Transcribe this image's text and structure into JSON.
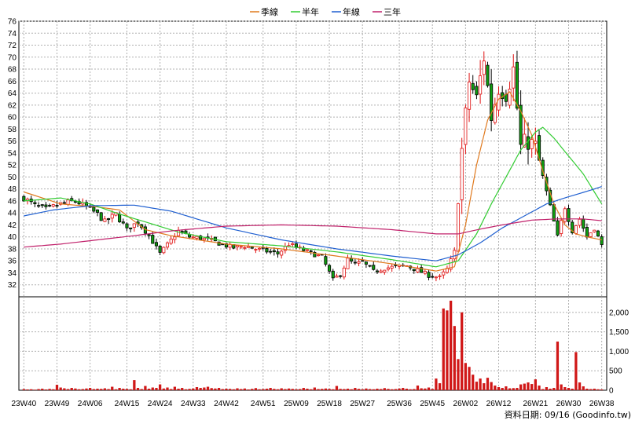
{
  "chart_data": {
    "type": "candlestick",
    "legend": [
      {
        "name": "季線",
        "color": "#e07a1f"
      },
      {
        "name": "半年",
        "color": "#33cc33"
      },
      {
        "name": "年線",
        "color": "#1f5fd0"
      },
      {
        "name": "三年",
        "color": "#c0206a"
      }
    ],
    "price_axis": {
      "min": 30,
      "max": 76,
      "ticks": [
        32,
        34,
        36,
        38,
        40,
        42,
        44,
        46,
        48,
        50,
        52,
        54,
        56,
        58,
        60,
        62,
        64,
        66,
        68,
        70,
        72,
        74,
        76
      ]
    },
    "volume_axis": {
      "min": 0,
      "max": 2400,
      "ticks": [
        "0",
        "500",
        "1,000",
        "1,500",
        "2,000"
      ],
      "tick_values": [
        0,
        500,
        1000,
        1500,
        2000
      ]
    },
    "x_labels": [
      "23W40",
      "23W49",
      "24W06",
      "24W15",
      "24W24",
      "24W33",
      "24W42",
      "24W51",
      "25W09",
      "25W18",
      "25W27",
      "25W36",
      "25W45",
      "26W02",
      "26W12",
      "26W21",
      "26W30",
      "26W38"
    ],
    "weeks": 158,
    "close_path": [
      [
        0,
        46.5
      ],
      [
        3,
        45.2
      ],
      [
        6,
        44.6
      ],
      [
        10,
        45.5
      ],
      [
        14,
        46.0
      ],
      [
        17,
        45.0
      ],
      [
        20,
        43.8
      ],
      [
        22,
        42.5
      ],
      [
        25,
        43.8
      ],
      [
        28,
        41.2
      ],
      [
        31,
        42.5
      ],
      [
        34,
        40.2
      ],
      [
        37,
        37.2
      ],
      [
        39,
        38.7
      ],
      [
        42,
        41.0
      ],
      [
        45,
        40.0
      ],
      [
        48,
        39.8
      ],
      [
        51,
        39.4
      ],
      [
        54,
        38.7
      ],
      [
        57,
        38.2
      ],
      [
        60,
        38.5
      ],
      [
        63,
        38.0
      ],
      [
        66,
        37.6
      ],
      [
        69,
        37.2
      ],
      [
        72,
        38.8
      ],
      [
        75,
        38.0
      ],
      [
        78,
        37.3
      ],
      [
        81,
        36.6
      ],
      [
        84,
        32.8
      ],
      [
        86,
        33.8
      ],
      [
        88,
        36.2
      ],
      [
        90,
        35.4
      ],
      [
        92,
        35.8
      ],
      [
        95,
        34.2
      ],
      [
        98,
        34.8
      ],
      [
        101,
        35.0
      ],
      [
        104,
        35.2
      ],
      [
        107,
        34.4
      ],
      [
        110,
        33.6
      ],
      [
        113,
        33.2
      ],
      [
        115,
        34.6
      ],
      [
        117,
        37.5
      ],
      [
        119,
        54.5
      ],
      [
        121,
        66.0
      ],
      [
        123,
        63.0
      ],
      [
        125,
        70.0
      ],
      [
        127,
        60.0
      ],
      [
        129,
        65.0
      ],
      [
        131,
        64.0
      ],
      [
        133,
        68.0
      ],
      [
        135,
        55.0
      ],
      [
        137,
        56.0
      ],
      [
        139,
        55.0
      ],
      [
        141,
        50.0
      ],
      [
        143,
        45.0
      ],
      [
        145,
        40.0
      ],
      [
        147,
        45.0
      ],
      [
        149,
        41.0
      ],
      [
        151,
        43.0
      ],
      [
        153,
        40.0
      ],
      [
        155,
        41.5
      ],
      [
        157,
        38.5
      ]
    ],
    "ma": {
      "季線": [
        [
          0,
          47.5
        ],
        [
          10,
          45.5
        ],
        [
          20,
          45.0
        ],
        [
          26,
          44.5
        ],
        [
          33,
          41.2
        ],
        [
          40,
          40.2
        ],
        [
          55,
          38.8
        ],
        [
          70,
          38.0
        ],
        [
          85,
          36.8
        ],
        [
          100,
          35.5
        ],
        [
          112,
          34.3
        ],
        [
          117,
          35.0
        ],
        [
          120,
          42.0
        ],
        [
          123,
          52.0
        ],
        [
          126,
          59.5
        ],
        [
          129,
          63.0
        ],
        [
          132,
          64.2
        ],
        [
          135,
          61.0
        ],
        [
          138,
          57.0
        ],
        [
          141,
          51.0
        ],
        [
          144,
          45.5
        ],
        [
          147,
          42.0
        ],
        [
          150,
          40.5
        ],
        [
          153,
          40.0
        ],
        [
          157,
          39.5
        ]
      ],
      "半年": [
        [
          0,
          46.0
        ],
        [
          10,
          46.5
        ],
        [
          18,
          45.5
        ],
        [
          26,
          43.8
        ],
        [
          33,
          42.5
        ],
        [
          42,
          40.8
        ],
        [
          55,
          39.2
        ],
        [
          70,
          38.5
        ],
        [
          85,
          37.5
        ],
        [
          100,
          36.2
        ],
        [
          112,
          35.0
        ],
        [
          118,
          36.0
        ],
        [
          123,
          40.5
        ],
        [
          127,
          45.5
        ],
        [
          131,
          50.0
        ],
        [
          135,
          54.5
        ],
        [
          139,
          57.5
        ],
        [
          141,
          58.3
        ],
        [
          144,
          56.5
        ],
        [
          148,
          53.5
        ],
        [
          152,
          50.5
        ],
        [
          155,
          47.5
        ],
        [
          157,
          45.5
        ]
      ],
      "年線": [
        [
          0,
          43.5
        ],
        [
          8,
          44.5
        ],
        [
          18,
          45.2
        ],
        [
          30,
          45.3
        ],
        [
          40,
          44.3
        ],
        [
          55,
          41.5
        ],
        [
          70,
          39.5
        ],
        [
          85,
          38.0
        ],
        [
          100,
          36.8
        ],
        [
          112,
          36.0
        ],
        [
          118,
          37.0
        ],
        [
          124,
          39.0
        ],
        [
          130,
          41.5
        ],
        [
          136,
          43.5
        ],
        [
          142,
          45.5
        ],
        [
          148,
          46.7
        ],
        [
          154,
          47.8
        ],
        [
          157,
          48.4
        ]
      ],
      "三年": [
        [
          0,
          38.3
        ],
        [
          10,
          38.8
        ],
        [
          20,
          39.5
        ],
        [
          30,
          40.2
        ],
        [
          40,
          41.0
        ],
        [
          55,
          41.8
        ],
        [
          70,
          42.0
        ],
        [
          85,
          41.8
        ],
        [
          100,
          41.2
        ],
        [
          112,
          40.5
        ],
        [
          118,
          40.5
        ],
        [
          124,
          41.3
        ],
        [
          130,
          42.0
        ],
        [
          138,
          42.8
        ],
        [
          145,
          43.0
        ],
        [
          152,
          43.0
        ],
        [
          157,
          42.7
        ]
      ]
    },
    "volume_base": [
      30,
      20,
      25,
      15,
      30,
      40,
      20,
      35,
      25,
      140,
      70,
      50,
      30,
      60,
      45,
      25,
      30,
      45,
      60,
      30,
      40,
      35,
      50,
      30,
      90,
      25,
      60,
      40,
      35,
      25,
      260,
      60,
      30,
      110,
      40,
      70,
      60,
      150,
      45,
      70,
      30,
      90,
      40,
      60,
      25,
      35,
      45,
      80,
      60,
      70,
      90,
      55,
      45,
      60,
      30,
      40,
      35,
      25,
      50,
      30,
      45,
      20,
      35,
      55,
      25,
      30,
      40,
      60,
      35,
      25,
      50,
      30,
      45,
      35,
      25,
      30,
      60,
      40,
      25,
      70,
      30,
      35,
      45,
      35,
      25,
      110,
      35,
      30,
      40,
      25,
      60,
      35,
      25,
      45,
      30,
      25,
      40,
      30,
      55,
      35,
      25,
      30,
      45,
      60,
      40,
      25,
      30,
      120,
      50,
      45,
      70,
      35,
      300,
      180,
      2100,
      2050,
      2300,
      1650,
      800,
      2000,
      700,
      600,
      400,
      220,
      300,
      180,
      320,
      210,
      120,
      80,
      60,
      100,
      50,
      55,
      60,
      150,
      170,
      200,
      160,
      280,
      120,
      30,
      80,
      40,
      60,
      1250,
      150,
      80,
      60,
      40,
      980,
      200,
      100,
      40,
      30,
      40,
      25,
      20
    ],
    "footer": "資料日期: 09/16  (Goodinfo.tw)"
  }
}
